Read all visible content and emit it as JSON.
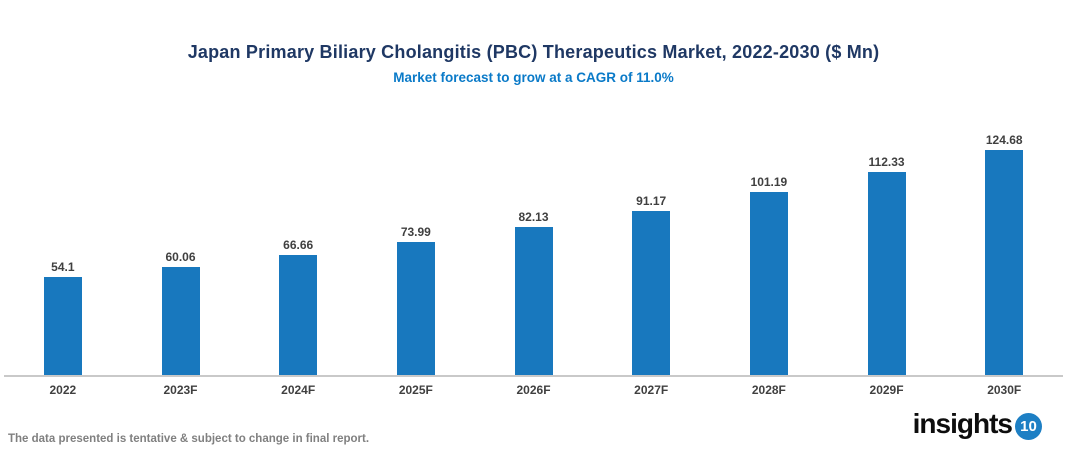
{
  "header": {
    "title": "Japan Primary Biliary Cholangitis (PBC) Therapeutics Market, 2022-2030 ($ Mn)",
    "subtitle": "Market forecast to grow at a CAGR of 11.0%"
  },
  "chart_data": {
    "type": "bar",
    "title": "Japan Primary Biliary Cholangitis (PBC) Therapeutics Market, 2022-2030 ($ Mn)",
    "subtitle": "Market forecast to grow at a CAGR of 11.0%",
    "categories": [
      "2022",
      "2023F",
      "2024F",
      "2025F",
      "2026F",
      "2027F",
      "2028F",
      "2029F",
      "2030F"
    ],
    "values": [
      54.1,
      60.06,
      66.66,
      73.99,
      82.13,
      91.17,
      101.19,
      112.33,
      124.68
    ],
    "xlabel": "",
    "ylabel": "",
    "ylim": [
      0,
      135
    ],
    "grid": false,
    "legend": "none",
    "value_labels_shown": true,
    "bar_color": "#1878be"
  },
  "footer": {
    "disclaimer": "The data presented is tentative & subject to change in final report.",
    "logo": {
      "text": "insights",
      "badge": "10"
    }
  },
  "colors": {
    "title": "#1f3864",
    "subtitle": "#0a7ac8",
    "bar": "#1878be",
    "axis_line": "#c9c9c9",
    "label": "#404040",
    "disclaimer": "#808080",
    "badge": "#1d7fc4"
  }
}
